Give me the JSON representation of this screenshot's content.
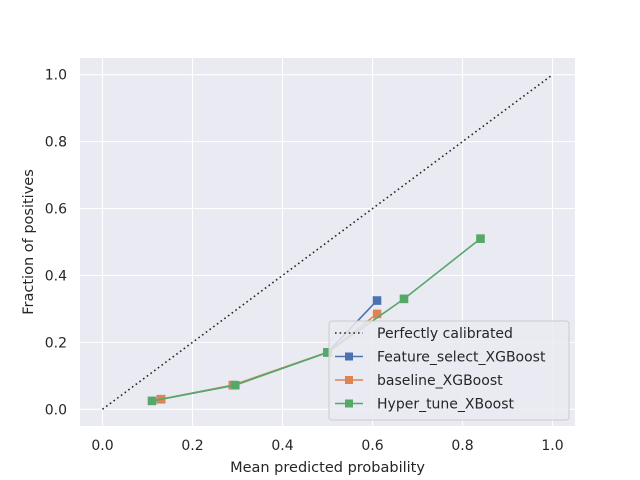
{
  "chart_data": {
    "type": "line",
    "title": "",
    "xlabel": "Mean predicted probability",
    "ylabel": "Fraction of positives",
    "xlim": [
      -0.05,
      1.05
    ],
    "ylim": [
      -0.05,
      1.05
    ],
    "xticks": [
      0.0,
      0.2,
      0.4,
      0.6,
      0.8,
      1.0
    ],
    "yticks": [
      0.0,
      0.2,
      0.4,
      0.6,
      0.8,
      1.0
    ],
    "xtick_labels": [
      "0.0",
      "0.2",
      "0.4",
      "0.6",
      "0.8",
      "1.0"
    ],
    "ytick_labels": [
      "0.0",
      "0.2",
      "0.4",
      "0.6",
      "0.8",
      "1.0"
    ],
    "grid": true,
    "legend_position": "bottom-right",
    "background": "#eaeaf2",
    "reference": {
      "name": "Perfectly calibrated",
      "x": [
        0.0,
        1.0
      ],
      "y": [
        0.0,
        1.0
      ],
      "style": "dotted",
      "color": "#262626"
    },
    "series": [
      {
        "name": "Feature_select_XGBoost",
        "color": "#4c72b0",
        "marker": "square",
        "x": [
          0.13,
          0.29,
          0.5,
          0.61
        ],
        "y": [
          0.03,
          0.072,
          0.17,
          0.325
        ]
      },
      {
        "name": "baseline_XGBoost",
        "color": "#dd8452",
        "marker": "square",
        "x": [
          0.13,
          0.29,
          0.5,
          0.61
        ],
        "y": [
          0.03,
          0.072,
          0.17,
          0.285
        ]
      },
      {
        "name": "Hyper_tune_XBoost",
        "color": "#55a868",
        "marker": "square",
        "x": [
          0.11,
          0.295,
          0.5,
          0.67,
          0.84
        ],
        "y": [
          0.025,
          0.072,
          0.17,
          0.33,
          0.51
        ]
      }
    ]
  }
}
